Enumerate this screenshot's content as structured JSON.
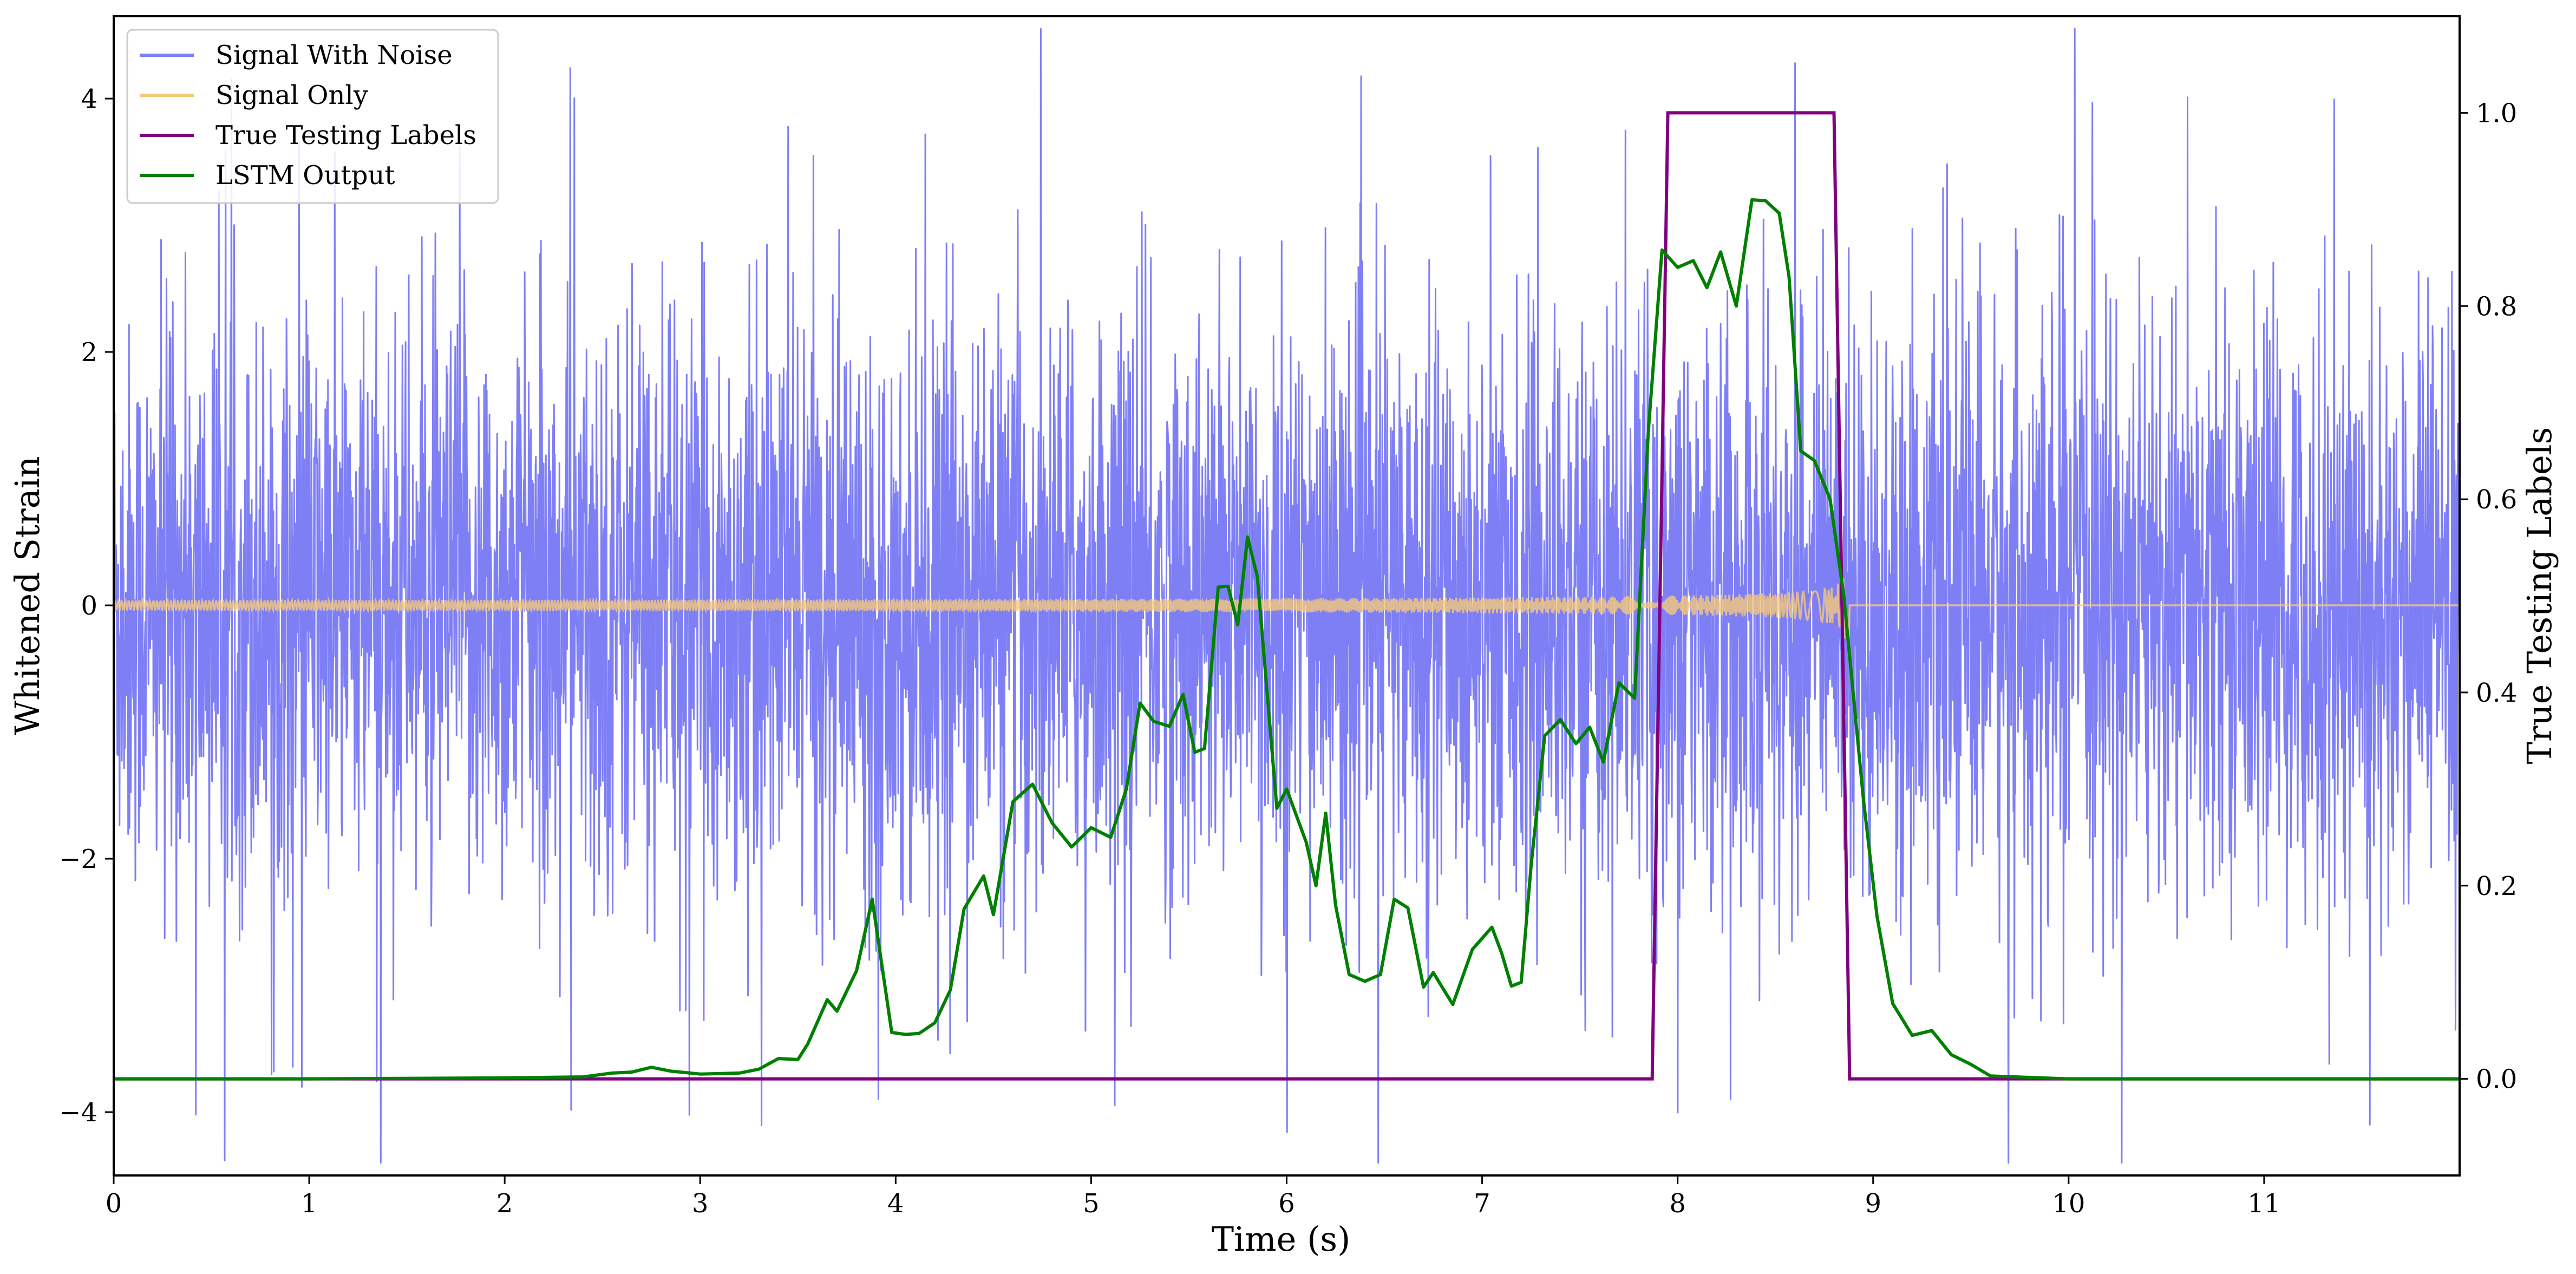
{
  "chart_data": {
    "type": "line",
    "title": "",
    "xlabel": "Time (s)",
    "ylabel": "Whitened Strain",
    "y2label": "True Testing Labels",
    "xlim": [
      0,
      12
    ],
    "ylim": [
      -4.5,
      4.65
    ],
    "y2lim": [
      -0.1,
      1.1
    ],
    "xticks": [
      0,
      1,
      2,
      3,
      4,
      5,
      6,
      7,
      8,
      9,
      10,
      11
    ],
    "yticks": [
      -4,
      -2,
      0,
      2,
      4
    ],
    "y2ticks": [
      0.0,
      0.2,
      0.4,
      0.6,
      0.8,
      1.0
    ],
    "xtick_labels": [
      "0",
      "1",
      "2",
      "3",
      "4",
      "5",
      "6",
      "7",
      "8",
      "9",
      "10",
      "11"
    ],
    "ytick_labels": [
      "−4",
      "−2",
      "0",
      "2",
      "4"
    ],
    "y2tick_labels": [
      "0.0",
      "0.2",
      "0.4",
      "0.6",
      "0.8",
      "1.0"
    ],
    "grid": false,
    "legend_position": "top-left",
    "series": [
      {
        "name": "Signal With Noise",
        "axis": "left",
        "color": "#7f7ff5",
        "noise_band": {
          "typical_abs_amplitude": 1.4,
          "max_spikes": [
            [
              0.42,
              -4.02
            ],
            [
              0.82,
              -3.68
            ],
            [
              1.77,
              3.62
            ],
            [
              3.45,
              3.78
            ],
            [
              8.6,
              4.28
            ],
            [
              8.27,
              -3.9
            ],
            [
              11.54,
              -4.1
            ],
            [
              11.98,
              -3.35
            ]
          ]
        }
      },
      {
        "name": "Signal Only",
        "axis": "left",
        "color": "#f5c97a",
        "chirp": {
          "start_amplitude": 0.04,
          "peak_amplitude": 0.55,
          "peak_time": 8.85,
          "end_time": 8.88
        }
      },
      {
        "name": "True Testing Labels",
        "axis": "right",
        "color": "#800080",
        "x": [
          0,
          7.87,
          7.95,
          8.8,
          8.88,
          12
        ],
        "y": [
          0,
          0,
          1,
          1,
          0,
          0
        ]
      },
      {
        "name": "LSTM Output",
        "axis": "right",
        "color": "#008000",
        "x": [
          0,
          1.0,
          2.0,
          2.4,
          2.55,
          2.65,
          2.75,
          2.85,
          3.0,
          3.2,
          3.3,
          3.4,
          3.5,
          3.55,
          3.65,
          3.7,
          3.8,
          3.88,
          3.98,
          4.05,
          4.12,
          4.2,
          4.28,
          4.35,
          4.45,
          4.5,
          4.6,
          4.7,
          4.8,
          4.9,
          5.0,
          5.1,
          5.18,
          5.25,
          5.32,
          5.4,
          5.47,
          5.53,
          5.58,
          5.65,
          5.7,
          5.75,
          5.8,
          5.85,
          5.9,
          5.95,
          6.0,
          6.1,
          6.15,
          6.2,
          6.25,
          6.32,
          6.4,
          6.48,
          6.55,
          6.62,
          6.7,
          6.75,
          6.85,
          6.95,
          7.05,
          7.1,
          7.15,
          7.2,
          7.25,
          7.32,
          7.4,
          7.48,
          7.55,
          7.62,
          7.7,
          7.78,
          7.85,
          7.92,
          8.0,
          8.08,
          8.15,
          8.22,
          8.3,
          8.38,
          8.45,
          8.52,
          8.57,
          8.63,
          8.7,
          8.78,
          8.85,
          8.95,
          9.02,
          9.1,
          9.2,
          9.3,
          9.4,
          9.5,
          9.6,
          10.0,
          12
        ],
        "y": [
          0,
          0,
          0.001,
          0.002,
          0.006,
          0.007,
          0.012,
          0.008,
          0.005,
          0.006,
          0.01,
          0.021,
          0.02,
          0.036,
          0.082,
          0.07,
          0.112,
          0.186,
          0.048,
          0.046,
          0.047,
          0.058,
          0.092,
          0.176,
          0.21,
          0.17,
          0.287,
          0.305,
          0.265,
          0.24,
          0.26,
          0.25,
          0.3,
          0.389,
          0.37,
          0.365,
          0.398,
          0.338,
          0.342,
          0.509,
          0.51,
          0.47,
          0.561,
          0.52,
          0.4,
          0.28,
          0.3,
          0.245,
          0.2,
          0.275,
          0.18,
          0.108,
          0.101,
          0.108,
          0.186,
          0.177,
          0.095,
          0.11,
          0.077,
          0.134,
          0.157,
          0.13,
          0.096,
          0.1,
          0.22,
          0.355,
          0.372,
          0.347,
          0.364,
          0.328,
          0.41,
          0.394,
          0.67,
          0.858,
          0.84,
          0.847,
          0.819,
          0.856,
          0.8,
          0.91,
          0.909,
          0.896,
          0.83,
          0.65,
          0.64,
          0.6,
          0.5,
          0.29,
          0.168,
          0.078,
          0.045,
          0.05,
          0.025,
          0.015,
          0.003,
          0,
          0
        ]
      }
    ]
  }
}
